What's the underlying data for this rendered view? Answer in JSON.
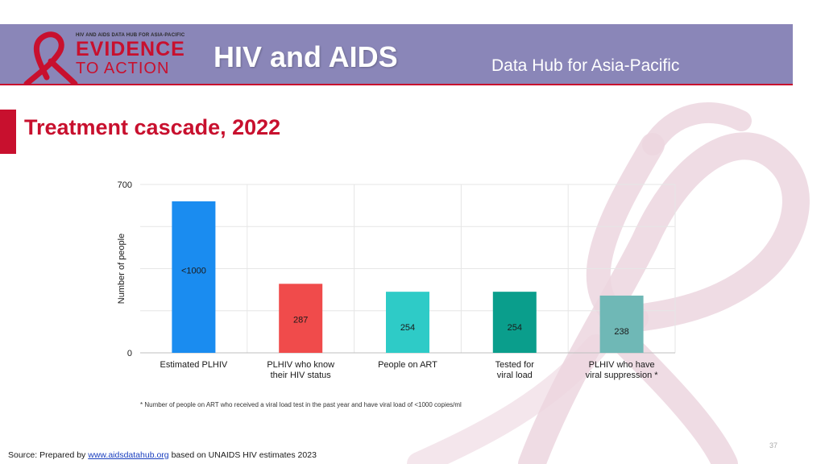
{
  "header": {
    "logo_top_text": "HIV AND AIDS DATA HUB FOR ASIA-PACIFIC",
    "logo_evidence": "EVIDENCE",
    "logo_to_action": "TO ACTION",
    "title": "HIV and AIDS",
    "subtitle": "Data Hub for Asia-Pacific"
  },
  "section_title": "Treatment cascade, 2022",
  "chart_data": {
    "type": "bar",
    "title": "",
    "xlabel": "",
    "ylabel": "Number of people",
    "ylim": [
      0,
      700
    ],
    "y_tick_labels": [
      "0",
      "700"
    ],
    "grid": true,
    "categories": [
      [
        "Estimated PLHIV"
      ],
      [
        "PLHIV who know",
        "their HIV status"
      ],
      [
        "People on ART"
      ],
      [
        "Tested for",
        "viral load"
      ],
      [
        "PLHIV who have",
        "viral suppression *"
      ]
    ],
    "values": [
      630,
      287,
      254,
      254,
      238
    ],
    "data_labels": [
      "<1000",
      "287",
      "254",
      "254",
      "238"
    ],
    "colors": [
      "#1a8cf0",
      "#f04b4b",
      "#2ecbc7",
      "#0a9e8c",
      "#6fb8b6"
    ]
  },
  "footnote": "* Number of people on ART who received a viral load test in the past year and have viral load of <1000 copies/ml",
  "page_number": "37",
  "source": {
    "prefix": "Source: Prepared by",
    "link_text": "www.aidsdatahub.org",
    "suffix": "based on UNAIDS HIV estimates 2023"
  },
  "colors": {
    "header_bg": "#8a86b8",
    "accent_red": "#c8102e",
    "ribbon_pink": "#ecd6df"
  }
}
